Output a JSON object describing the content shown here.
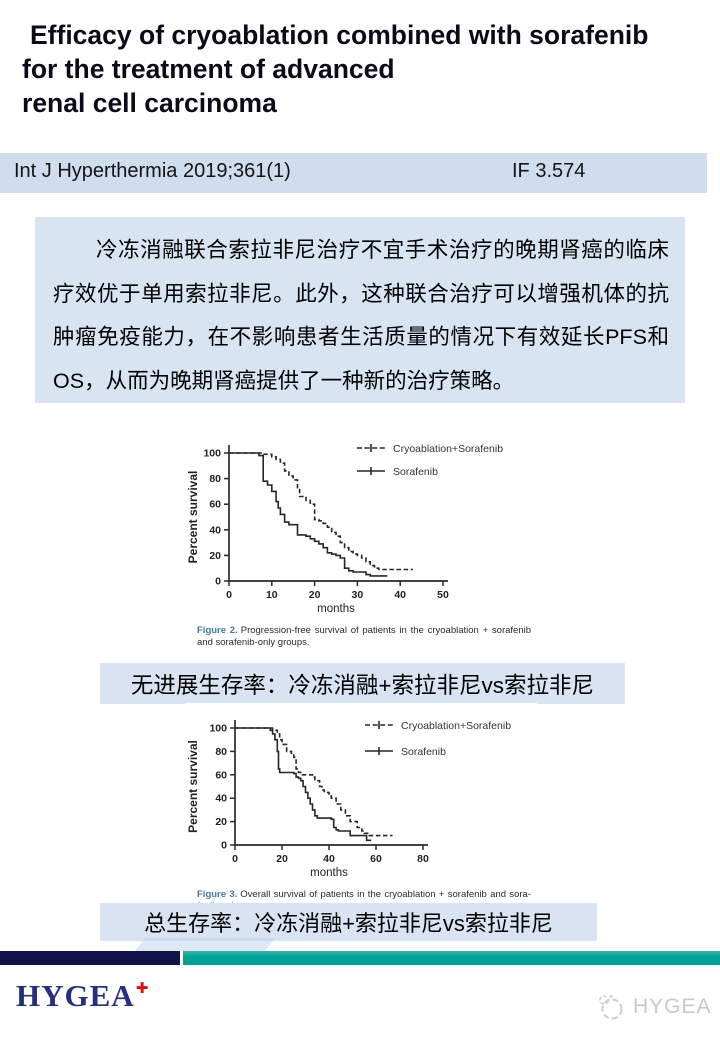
{
  "header": {
    "title_lines": [
      "Efficacy of cryoablation combined with sorafenib",
      "for the treatment of advanced",
      "renal cell carcinoma"
    ],
    "journal": "Int J Hyperthermia 2019;361(1)",
    "impact_factor": "IF 3.574"
  },
  "summary": {
    "text_cn": "冷冻消融联合索拉非尼治疗不宜手术治疗的晚期肾癌的临床疗效优于单用索拉非尼。此外，这种联合治疗可以增强机体的抗肿瘤免疫能力，在不影响患者生活质量的情况下有效延长PFS和OS，从而为晚期肾癌提供了一种新的治疗策略。"
  },
  "banners": {
    "pfs": "无进展生存率：冷冻消融+索拉非尼vs索拉非尼",
    "os": "总生存率：冷冻消融+索拉非尼vs索拉非尼"
  },
  "footer": {
    "logo_text": "HYGEA",
    "logo_cross": "✚",
    "watermark_text": "HYGEA"
  },
  "chart_data": [
    {
      "type": "line",
      "step": true,
      "title": "",
      "xlabel": "months",
      "ylabel": "Percent survival",
      "xlim": [
        0,
        50
      ],
      "ylim": [
        0,
        100
      ],
      "xticks": [
        0,
        10,
        20,
        30,
        40,
        50
      ],
      "yticks": [
        0,
        20,
        40,
        60,
        80,
        100
      ],
      "grid": false,
      "legend_position": "top-right",
      "series": [
        {
          "name": "Cryoablation+Sorafenib",
          "style": "dashed",
          "points": [
            [
              0,
              100
            ],
            [
              7,
              100
            ],
            [
              8,
              99
            ],
            [
              10,
              97
            ],
            [
              11,
              95
            ],
            [
              12,
              92
            ],
            [
              13,
              86
            ],
            [
              14,
              82
            ],
            [
              15,
              79
            ],
            [
              16,
              72
            ],
            [
              16.5,
              66
            ],
            [
              18,
              63
            ],
            [
              19,
              60
            ],
            [
              20,
              48
            ],
            [
              21,
              47
            ],
            [
              22,
              45
            ],
            [
              23,
              42
            ],
            [
              24,
              38
            ],
            [
              25,
              35
            ],
            [
              26,
              30
            ],
            [
              27,
              26
            ],
            [
              28,
              23
            ],
            [
              29,
              21
            ],
            [
              30,
              20
            ],
            [
              31,
              18
            ],
            [
              32,
              15
            ],
            [
              33,
              12
            ],
            [
              34,
              10
            ],
            [
              35,
              9
            ],
            [
              43,
              9
            ]
          ]
        },
        {
          "name": "Sorafenib",
          "style": "solid",
          "points": [
            [
              0,
              100
            ],
            [
              6,
              100
            ],
            [
              7,
              98
            ],
            [
              8,
              95
            ],
            [
              8,
              78
            ],
            [
              9,
              75
            ],
            [
              10,
              70
            ],
            [
              11,
              62
            ],
            [
              11.5,
              57
            ],
            [
              12,
              52
            ],
            [
              13,
              46
            ],
            [
              14,
              44
            ],
            [
              16,
              44
            ],
            [
              16,
              36
            ],
            [
              18,
              35
            ],
            [
              19,
              33
            ],
            [
              20,
              31
            ],
            [
              21,
              29
            ],
            [
              22,
              26
            ],
            [
              23,
              22
            ],
            [
              24,
              21
            ],
            [
              25,
              20
            ],
            [
              26,
              18
            ],
            [
              27,
              10
            ],
            [
              28,
              8
            ],
            [
              29,
              7
            ],
            [
              32,
              5
            ],
            [
              33,
              4
            ],
            [
              37,
              4
            ]
          ]
        }
      ],
      "caption_label": "Figure 2.",
      "caption_text": "Progression-free survival of patients in the cryoablation + sorafenib and sorafenib-only groups."
    },
    {
      "type": "line",
      "step": true,
      "title": "",
      "xlabel": "months",
      "ylabel": "Percent survival",
      "xlim": [
        0,
        80
      ],
      "ylim": [
        0,
        100
      ],
      "xticks": [
        0,
        20,
        40,
        60,
        80
      ],
      "yticks": [
        0,
        20,
        40,
        60,
        80,
        100
      ],
      "grid": false,
      "legend_position": "top-right",
      "series": [
        {
          "name": "Cryoablation+Sorafenib",
          "style": "dashed",
          "points": [
            [
              0,
              100
            ],
            [
              14,
              100
            ],
            [
              16,
              98
            ],
            [
              18,
              95
            ],
            [
              19,
              90
            ],
            [
              20,
              86
            ],
            [
              22,
              80
            ],
            [
              24,
              77
            ],
            [
              25,
              75
            ],
            [
              26,
              65
            ],
            [
              27,
              62
            ],
            [
              28,
              60
            ],
            [
              32,
              60
            ],
            [
              33,
              58
            ],
            [
              34,
              55
            ],
            [
              36,
              50
            ],
            [
              37,
              47
            ],
            [
              38,
              45
            ],
            [
              40,
              42
            ],
            [
              41,
              40
            ],
            [
              43,
              35
            ],
            [
              45,
              30
            ],
            [
              47,
              25
            ],
            [
              49,
              20
            ],
            [
              52,
              15
            ],
            [
              54,
              12
            ],
            [
              55,
              10
            ],
            [
              57,
              8
            ],
            [
              67,
              8
            ]
          ]
        },
        {
          "name": "Sorafenib",
          "style": "solid",
          "points": [
            [
              0,
              100
            ],
            [
              13,
              100
            ],
            [
              15,
              98
            ],
            [
              16,
              95
            ],
            [
              17,
              90
            ],
            [
              18,
              80
            ],
            [
              18.5,
              65
            ],
            [
              19,
              62
            ],
            [
              25,
              61
            ],
            [
              26,
              58
            ],
            [
              27,
              57
            ],
            [
              28,
              55
            ],
            [
              29,
              50
            ],
            [
              30,
              45
            ],
            [
              31,
              40
            ],
            [
              32,
              35
            ],
            [
              33,
              30
            ],
            [
              34,
              25
            ],
            [
              35,
              23
            ],
            [
              41,
              22
            ],
            [
              42,
              15
            ],
            [
              43,
              13
            ],
            [
              44,
              12
            ],
            [
              48,
              12
            ],
            [
              49,
              8
            ],
            [
              55,
              8
            ],
            [
              56,
              4
            ],
            [
              58,
              4
            ]
          ]
        }
      ],
      "caption_label": "Figure 3.",
      "caption_text": "Overall survival of patients in the cryoablation + sorafenib and sora-fenib-only groups."
    }
  ]
}
